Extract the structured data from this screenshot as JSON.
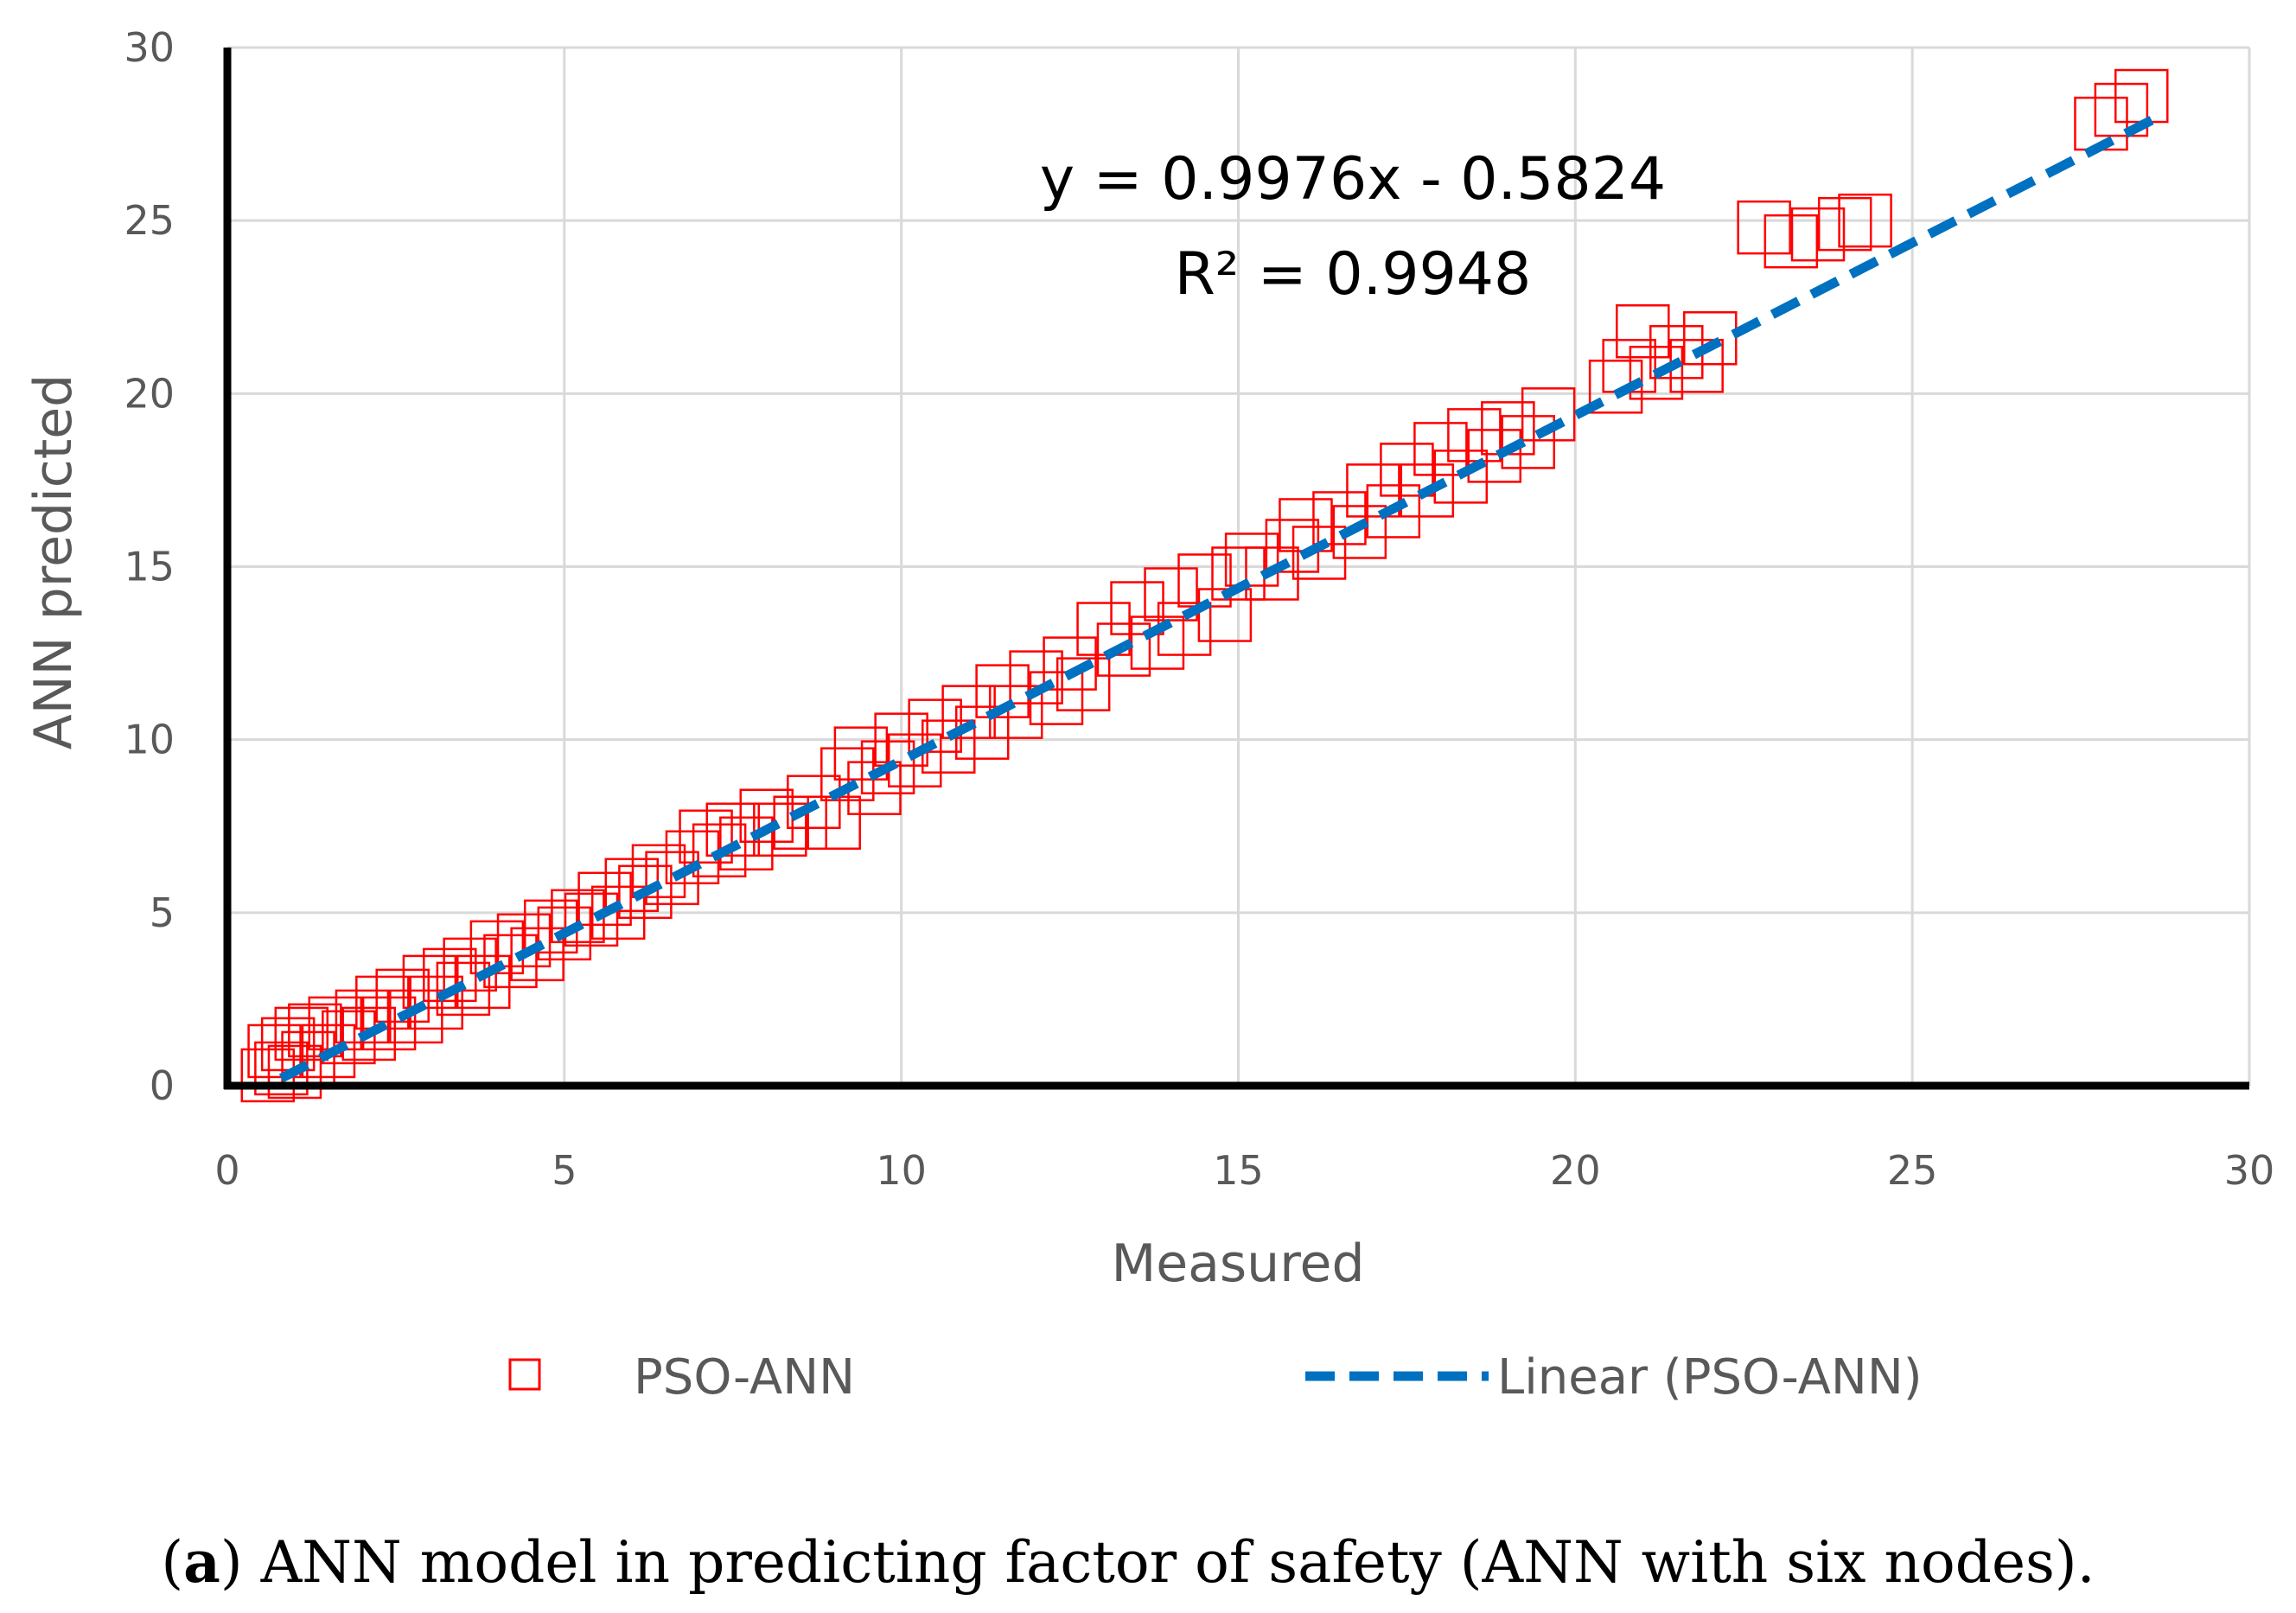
{
  "chart_data": {
    "type": "scatter",
    "xlabel": "Measured",
    "ylabel": "ANN predicted",
    "xlim": [
      0,
      30
    ],
    "ylim": [
      0,
      30
    ],
    "xticks": [
      0,
      5,
      10,
      15,
      20,
      25,
      30
    ],
    "yticks": [
      0,
      5,
      10,
      15,
      20,
      25,
      30
    ],
    "grid": true,
    "legend_position": "bottom",
    "series": [
      {
        "name": "PSO-ANN",
        "marker": "square-open",
        "color": "#ff0000",
        "x": [
          0.6,
          0.7,
          0.8,
          0.9,
          1.0,
          1.1,
          1.2,
          1.3,
          1.5,
          1.6,
          1.8,
          2.0,
          2.1,
          2.3,
          2.4,
          2.6,
          2.8,
          3.0,
          3.1,
          3.3,
          3.5,
          3.6,
          3.8,
          4.0,
          4.2,
          4.4,
          4.6,
          4.8,
          5.0,
          5.2,
          5.4,
          5.6,
          5.8,
          6.0,
          6.2,
          6.4,
          6.6,
          6.9,
          7.1,
          7.3,
          7.5,
          7.7,
          8.0,
          8.2,
          8.5,
          8.7,
          9.0,
          9.2,
          9.4,
          9.6,
          9.8,
          10.0,
          10.2,
          10.5,
          10.7,
          11.0,
          11.2,
          11.5,
          11.7,
          12.0,
          12.3,
          12.5,
          12.7,
          13.0,
          13.3,
          13.5,
          13.8,
          14.0,
          14.2,
          14.5,
          14.8,
          15.0,
          15.2,
          15.5,
          15.8,
          16.0,
          16.2,
          16.5,
          16.8,
          17.0,
          17.3,
          17.5,
          17.8,
          18.0,
          18.3,
          18.5,
          18.8,
          19.0,
          19.3,
          19.6,
          20.6,
          20.8,
          21.0,
          21.2,
          21.5,
          21.8,
          22.0,
          22.8,
          23.2,
          23.6,
          24.0,
          24.3,
          27.8,
          28.1,
          28.4
        ],
        "y": [
          0.3,
          1.0,
          0.5,
          1.2,
          0.4,
          1.5,
          0.8,
          1.6,
          1.0,
          1.8,
          1.4,
          2.0,
          1.5,
          2.4,
          1.8,
          2.6,
          2.0,
          3.0,
          2.4,
          3.2,
          2.8,
          3.5,
          3.0,
          4.0,
          3.6,
          4.2,
          3.8,
          4.6,
          4.4,
          4.9,
          4.8,
          5.4,
          5.0,
          5.8,
          5.6,
          6.2,
          6.0,
          6.6,
          7.2,
          6.8,
          7.4,
          7.0,
          7.8,
          7.4,
          7.6,
          8.2,
          7.6,
          9.0,
          9.6,
          8.6,
          9.2,
          10.0,
          9.4,
          10.4,
          9.8,
          10.8,
          10.2,
          11.4,
          10.8,
          11.8,
          11.2,
          12.2,
          11.6,
          13.2,
          12.6,
          13.8,
          12.8,
          14.2,
          13.2,
          14.6,
          13.6,
          14.8,
          15.2,
          14.8,
          15.6,
          16.2,
          15.4,
          16.4,
          16.0,
          17.2,
          16.6,
          17.8,
          17.2,
          18.4,
          17.6,
          18.8,
          18.2,
          19.0,
          18.6,
          19.4,
          20.2,
          20.8,
          21.8,
          20.6,
          21.2,
          20.8,
          21.6,
          24.8,
          24.4,
          24.6,
          24.9,
          25.0,
          27.8,
          28.2,
          28.6
        ]
      },
      {
        "name": "Linear (PSO-ANN)",
        "type": "trendline",
        "style": "dashed",
        "color": "#0070c0",
        "slope": 0.9976,
        "intercept": -0.5824,
        "x_range": [
          0.8,
          28.6
        ]
      }
    ],
    "annotations": [
      "y = 0.9976x - 0.5824",
      "R² = 0.9948"
    ]
  },
  "caption": {
    "label": "a",
    "text": " ANN model in predicting factor of safety (ANN with six nodes)."
  }
}
